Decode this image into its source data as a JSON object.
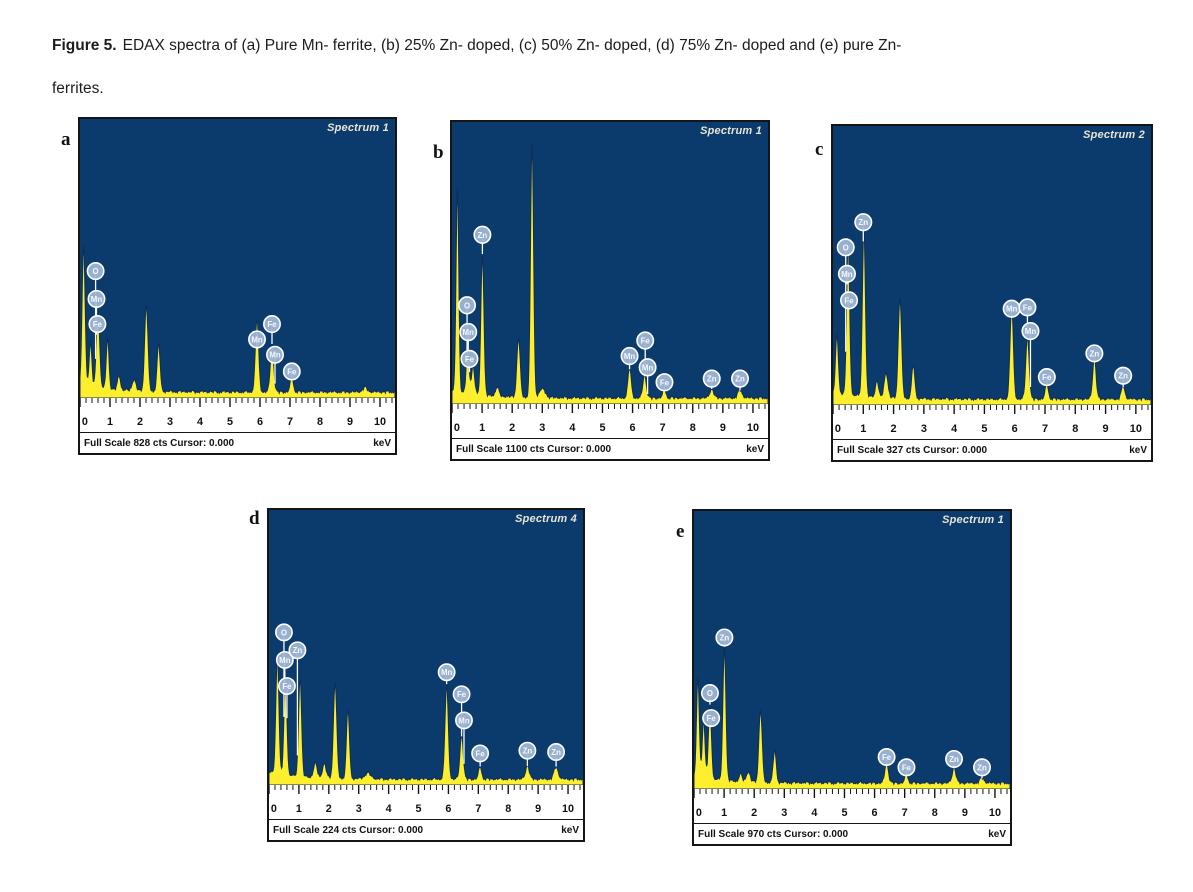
{
  "caption": {
    "prefix": "Figure 5.",
    "line1": "EDAX spectra of (a) Pure Mn- ferrite, (b) 25% Zn- doped, (c) 50% Zn- doped, (d) 75% Zn- doped and (e) pure Zn-",
    "line2": "ferrites."
  },
  "colors": {
    "plot_background": "#0b3a6c",
    "peak_fill": "#fdee2e",
    "peak_outline": "#0e2f55",
    "marker_fill": "#9fb6d4",
    "marker_stroke": "#ffffff",
    "spectrum_label_color": "#e9e4d4",
    "axis_ink": "#111111"
  },
  "axis": {
    "tick_labels": [
      "0",
      "1",
      "2",
      "3",
      "4",
      "5",
      "6",
      "7",
      "8",
      "9",
      "10"
    ],
    "x_max_kev": 10.5,
    "unit": "keV"
  },
  "panels": [
    {
      "letter": "a",
      "spectrum_label": "Spectrum 1",
      "full_scale": "Full Scale 828 cts Cursor: 0.000",
      "kev_label": "keV"
    },
    {
      "letter": "b",
      "spectrum_label": "Spectrum 1",
      "full_scale": "Full Scale 1100 cts Cursor: 0.000",
      "kev_label": "keV"
    },
    {
      "letter": "c",
      "spectrum_label": "Spectrum 2",
      "full_scale": "Full Scale 327 cts Cursor: 0.000",
      "kev_label": "keV"
    },
    {
      "letter": "d",
      "spectrum_label": "Spectrum 4",
      "full_scale": "Full Scale 224 cts Cursor: 0.000",
      "kev_label": "keV"
    },
    {
      "letter": "e",
      "spectrum_label": "Spectrum 1",
      "full_scale": "Full Scale 970 cts Cursor: 0.000",
      "kev_label": "keV"
    }
  ],
  "chart_data": [
    {
      "type": "area",
      "panel": "a",
      "title": "Spectrum 1",
      "xlabel": "keV",
      "x_range": [
        0,
        10.5
      ],
      "full_scale_cts": 828,
      "peaks": [
        [
          0.12,
          0.5,
          0.05
        ],
        [
          0.35,
          0.16,
          0.045
        ],
        [
          0.6,
          0.28,
          0.055
        ],
        [
          0.92,
          0.18,
          0.045
        ],
        [
          1.3,
          0.05,
          0.05
        ],
        [
          1.8,
          0.04,
          0.06
        ],
        [
          2.21,
          0.31,
          0.055
        ],
        [
          2.62,
          0.17,
          0.05
        ],
        [
          5.9,
          0.26,
          0.055
        ],
        [
          6.4,
          0.17,
          0.055
        ],
        [
          7.06,
          0.055,
          0.05
        ],
        [
          9.5,
          0.015,
          0.08
        ]
      ],
      "markers": [
        {
          "el": "O",
          "x": 0.52,
          "y": 0.455
        },
        {
          "el": "Mn",
          "x": 0.55,
          "y": 0.355
        },
        {
          "el": "Fe",
          "x": 0.58,
          "y": 0.265
        },
        {
          "el": "Mn",
          "x": 5.9,
          "y": 0.21
        },
        {
          "el": "Fe",
          "x": 6.4,
          "y": 0.265
        },
        {
          "el": "Mn",
          "x": 6.5,
          "y": 0.155
        },
        {
          "el": "Fe",
          "x": 7.06,
          "y": 0.095
        }
      ]
    },
    {
      "type": "area",
      "panel": "b",
      "title": "Spectrum 1",
      "xlabel": "keV",
      "x_range": [
        0,
        10.5
      ],
      "full_scale_cts": 1100,
      "peaks": [
        [
          0.18,
          0.72,
          0.045
        ],
        [
          0.52,
          0.15,
          0.05
        ],
        [
          0.7,
          0.1,
          0.05
        ],
        [
          1.01,
          0.5,
          0.05
        ],
        [
          1.5,
          0.03,
          0.06
        ],
        [
          2.21,
          0.21,
          0.055
        ],
        [
          2.66,
          0.9,
          0.05
        ],
        [
          3.0,
          0.03,
          0.1
        ],
        [
          5.9,
          0.105,
          0.055
        ],
        [
          6.4,
          0.085,
          0.055
        ],
        [
          7.06,
          0.03,
          0.05
        ],
        [
          8.63,
          0.033,
          0.06
        ],
        [
          9.57,
          0.028,
          0.07
        ]
      ],
      "markers": [
        {
          "el": "Zn",
          "x": 1.01,
          "y": 0.6
        },
        {
          "el": "O",
          "x": 0.5,
          "y": 0.35
        },
        {
          "el": "Mn",
          "x": 0.54,
          "y": 0.255
        },
        {
          "el": "Fe",
          "x": 0.58,
          "y": 0.16
        },
        {
          "el": "Mn",
          "x": 5.9,
          "y": 0.17
        },
        {
          "el": "Fe",
          "x": 6.42,
          "y": 0.225
        },
        {
          "el": "Mn",
          "x": 6.5,
          "y": 0.13
        },
        {
          "el": "Fe",
          "x": 7.06,
          "y": 0.077
        },
        {
          "el": "Zn",
          "x": 8.63,
          "y": 0.09
        },
        {
          "el": "Zn",
          "x": 9.57,
          "y": 0.09
        }
      ]
    },
    {
      "type": "area",
      "panel": "c",
      "title": "Spectrum 2",
      "xlabel": "keV",
      "x_range": [
        0,
        10.5
      ],
      "full_scale_cts": 327,
      "peaks": [
        [
          0.13,
          0.21,
          0.045
        ],
        [
          0.5,
          0.54,
          0.05
        ],
        [
          1.02,
          0.6,
          0.05
        ],
        [
          1.45,
          0.06,
          0.05
        ],
        [
          1.75,
          0.09,
          0.06
        ],
        [
          2.21,
          0.36,
          0.055
        ],
        [
          2.65,
          0.12,
          0.05
        ],
        [
          5.9,
          0.33,
          0.055
        ],
        [
          6.42,
          0.225,
          0.055
        ],
        [
          7.06,
          0.055,
          0.05
        ],
        [
          8.63,
          0.15,
          0.055
        ],
        [
          9.58,
          0.045,
          0.06
        ]
      ],
      "markers": [
        {
          "el": "O",
          "x": 0.42,
          "y": 0.565
        },
        {
          "el": "Zn",
          "x": 1.0,
          "y": 0.655
        },
        {
          "el": "Mn",
          "x": 0.46,
          "y": 0.47
        },
        {
          "el": "Fe",
          "x": 0.53,
          "y": 0.375
        },
        {
          "el": "Mn",
          "x": 5.9,
          "y": 0.345
        },
        {
          "el": "Fe",
          "x": 6.42,
          "y": 0.35
        },
        {
          "el": "Mn",
          "x": 6.52,
          "y": 0.265
        },
        {
          "el": "Fe",
          "x": 7.06,
          "y": 0.1
        },
        {
          "el": "Zn",
          "x": 8.63,
          "y": 0.185
        },
        {
          "el": "Zn",
          "x": 9.58,
          "y": 0.105
        }
      ]
    },
    {
      "type": "area",
      "panel": "d",
      "title": "Spectrum 4",
      "xlabel": "keV",
      "x_range": [
        0,
        10.5
      ],
      "full_scale_cts": 224,
      "peaks": [
        [
          0.28,
          0.43,
          0.05
        ],
        [
          0.55,
          0.34,
          0.05
        ],
        [
          1.04,
          0.36,
          0.05
        ],
        [
          1.55,
          0.05,
          0.06
        ],
        [
          1.85,
          0.05,
          0.06
        ],
        [
          2.21,
          0.35,
          0.055
        ],
        [
          2.64,
          0.25,
          0.05
        ],
        [
          3.3,
          0.02,
          0.1
        ],
        [
          5.94,
          0.34,
          0.055
        ],
        [
          6.44,
          0.16,
          0.055
        ],
        [
          7.06,
          0.045,
          0.05
        ],
        [
          8.64,
          0.05,
          0.06
        ],
        [
          9.6,
          0.045,
          0.07
        ]
      ],
      "markers": [
        {
          "el": "O",
          "x": 0.5,
          "y": 0.555
        },
        {
          "el": "Mn",
          "x": 0.53,
          "y": 0.455
        },
        {
          "el": "Zn",
          "x": 0.95,
          "y": 0.49
        },
        {
          "el": "Fe",
          "x": 0.6,
          "y": 0.36
        },
        {
          "el": "Mn",
          "x": 5.94,
          "y": 0.41
        },
        {
          "el": "Fe",
          "x": 6.44,
          "y": 0.33
        },
        {
          "el": "Mn",
          "x": 6.52,
          "y": 0.235
        },
        {
          "el": "Fe",
          "x": 7.06,
          "y": 0.115
        },
        {
          "el": "Zn",
          "x": 8.64,
          "y": 0.125
        },
        {
          "el": "Zn",
          "x": 9.6,
          "y": 0.12
        }
      ]
    },
    {
      "type": "area",
      "panel": "e",
      "title": "Spectrum 1",
      "xlabel": "keV",
      "x_range": [
        0,
        10.5
      ],
      "full_scale_cts": 970,
      "peaks": [
        [
          0.13,
          0.36,
          0.045
        ],
        [
          0.32,
          0.21,
          0.045
        ],
        [
          0.53,
          0.26,
          0.05
        ],
        [
          1.01,
          0.48,
          0.05
        ],
        [
          1.55,
          0.025,
          0.05
        ],
        [
          1.8,
          0.035,
          0.06
        ],
        [
          2.21,
          0.26,
          0.055
        ],
        [
          2.68,
          0.115,
          0.05
        ],
        [
          6.4,
          0.08,
          0.055
        ],
        [
          7.06,
          0.03,
          0.05
        ],
        [
          8.64,
          0.055,
          0.06
        ],
        [
          9.57,
          0.018,
          0.07
        ]
      ],
      "markers": [
        {
          "el": "Zn",
          "x": 1.01,
          "y": 0.545
        },
        {
          "el": "O",
          "x": 0.53,
          "y": 0.345
        },
        {
          "el": "Fe",
          "x": 0.57,
          "y": 0.255
        },
        {
          "el": "Fe",
          "x": 6.4,
          "y": 0.115
        },
        {
          "el": "Fe",
          "x": 7.06,
          "y": 0.078
        },
        {
          "el": "Zn",
          "x": 8.64,
          "y": 0.108
        },
        {
          "el": "Zn",
          "x": 9.57,
          "y": 0.078
        }
      ]
    }
  ]
}
